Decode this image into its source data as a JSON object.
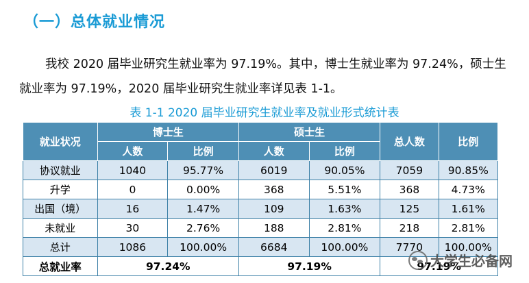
{
  "heading": "（一）总体就业情况",
  "paragraph": "我校 2020 届毕业研究生就业率为 97.19%。其中，博士生就业率为 97.24%，硕士生就业率为 97.19%，2020 届毕业研究生就业率详见表 1-1。",
  "caption": "表 1-1 2020 届毕业研究生就业率及就业形式统计表",
  "table": {
    "col_status": "就业状况",
    "col_phd": "博士生",
    "col_master": "硕士生",
    "col_total": "总人数",
    "col_ratio": "比例",
    "sub_count": "人数",
    "sub_ratio": "比例",
    "rows": [
      {
        "label": "协议就业",
        "phd_n": "1040",
        "phd_r": "95.77%",
        "ms_n": "6019",
        "ms_r": "90.05%",
        "tot_n": "7059",
        "tot_r": "90.85%"
      },
      {
        "label": "升学",
        "phd_n": "0",
        "phd_r": "0.00%",
        "ms_n": "368",
        "ms_r": "5.51%",
        "tot_n": "368",
        "tot_r": "4.73%"
      },
      {
        "label": "出国（境）",
        "phd_n": "16",
        "phd_r": "1.47%",
        "ms_n": "109",
        "ms_r": "1.63%",
        "tot_n": "125",
        "tot_r": "1.61%"
      },
      {
        "label": "未就业",
        "phd_n": "30",
        "phd_r": "2.76%",
        "ms_n": "188",
        "ms_r": "2.81%",
        "tot_n": "218",
        "tot_r": "2.81%"
      },
      {
        "label": "总计",
        "phd_n": "1086",
        "phd_r": "100.00%",
        "ms_n": "6684",
        "ms_r": "100.00%",
        "tot_n": "7770",
        "tot_r": "100.00%"
      }
    ],
    "rate_label": "总就业率",
    "rate_phd": "97.24%",
    "rate_master": "97.19%",
    "rate_total": "97.19%"
  },
  "watermark": "大学生必备网"
}
